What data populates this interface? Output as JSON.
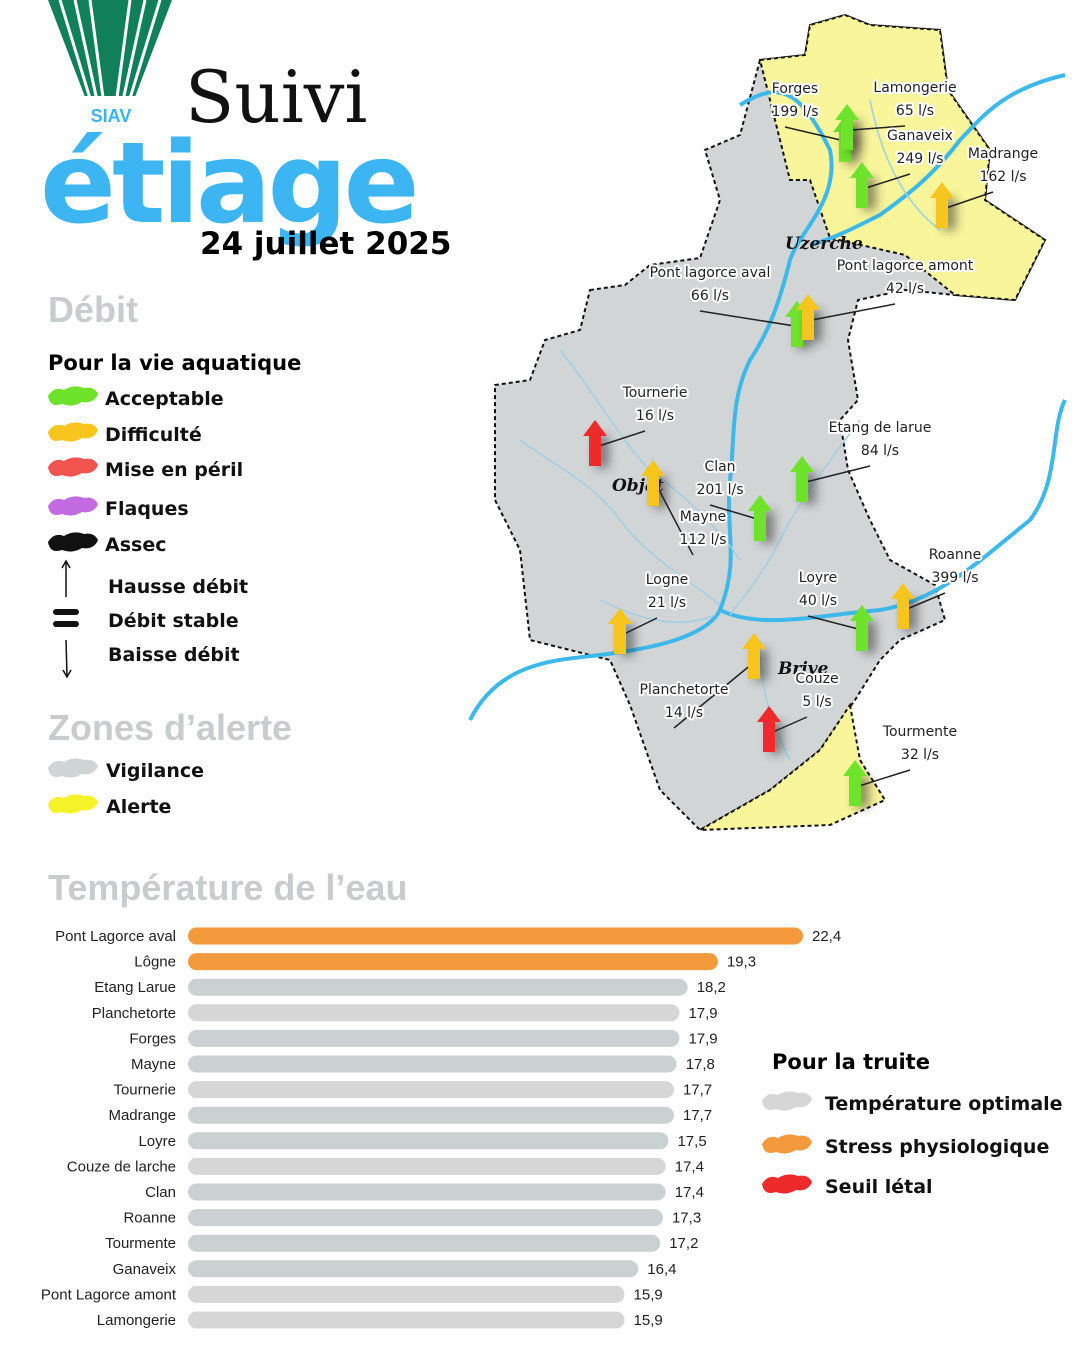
{
  "header": {
    "logo": "SIAV",
    "title_line1": "Suivi",
    "title_line2": "étiage",
    "date": "24 juillet 2025"
  },
  "flow_legend": {
    "heading": "Débit",
    "subheading": "Pour la vie aquatique",
    "items": [
      {
        "label": "Acceptable",
        "color": "#6fe22c"
      },
      {
        "label": "Difficulté",
        "color": "#f7c51d"
      },
      {
        "label": "Mise en péril",
        "color": "#f2544f"
      },
      {
        "label": "Flaques",
        "color": "#c26ae0"
      },
      {
        "label": "Assec",
        "color": "#111111"
      }
    ],
    "trends": [
      "Hausse débit",
      "Débit stable",
      "Baisse débit"
    ]
  },
  "zones_legend": {
    "heading": "Zones d’alerte",
    "items": [
      {
        "label": "Vigilance",
        "color": "#cfd5d6"
      },
      {
        "label": "Alerte",
        "color": "#f6f22a"
      }
    ]
  },
  "map": {
    "towns": [
      "Uzerche",
      "Objat",
      "Brive"
    ],
    "stations": [
      {
        "name": "Forges",
        "flow": "199 l/s",
        "color": "#6fe22c"
      },
      {
        "name": "Lamongerie",
        "flow": "65 l/s",
        "color": "#6fe22c"
      },
      {
        "name": "Ganaveix",
        "flow": "249 l/s",
        "color": "#6fe22c"
      },
      {
        "name": "Madrange",
        "flow": "162 l/s",
        "color": "#f7c51d"
      },
      {
        "name": "Pont lagorce aval",
        "flow": "66 l/s",
        "color": "#6fe22c"
      },
      {
        "name": "Pont lagorce amont",
        "flow": "42 l/s",
        "color": "#f7c51d"
      },
      {
        "name": "Tournerie",
        "flow": "16 l/s",
        "color": "#ee2a2a"
      },
      {
        "name": "Etang de larue",
        "flow": "84 l/s",
        "color": "#6fe22c"
      },
      {
        "name": "Clan",
        "flow": "201 l/s",
        "color": "#6fe22c"
      },
      {
        "name": "Mayne",
        "flow": "112 l/s",
        "color": "#f7c51d"
      },
      {
        "name": "Roanne",
        "flow": "399 l/s",
        "color": "#f7c51d"
      },
      {
        "name": "Loyre",
        "flow": "40 l/s",
        "color": "#6fe22c"
      },
      {
        "name": "Logne",
        "flow": "21 l/s",
        "color": "#f7c51d"
      },
      {
        "name": "Planchetorte",
        "flow": "14 l/s",
        "color": "#f7c51d"
      },
      {
        "name": "Couze",
        "flow": "5 l/s",
        "color": "#ee2a2a"
      },
      {
        "name": "Tourmente",
        "flow": "32 l/s",
        "color": "#6fe22c"
      }
    ]
  },
  "chart_data": {
    "type": "bar",
    "orientation": "horizontal",
    "title": "Température de l’eau",
    "categories": [
      "Pont Lagorce aval",
      "Lôgne",
      "Etang Larue",
      "Planchetorte",
      "Forges",
      "Mayne",
      "Tournerie",
      "Madrange",
      "Loyre",
      "Couze de larche",
      "Clan",
      "Roanne",
      "Tourmente",
      "Ganaveix",
      "Pont Lagorce amont",
      "Lamongerie"
    ],
    "values": [
      22.4,
      19.3,
      18.2,
      17.9,
      17.9,
      17.8,
      17.7,
      17.7,
      17.5,
      17.4,
      17.4,
      17.3,
      17.2,
      16.4,
      15.9,
      15.9
    ],
    "value_labels": [
      "22,4",
      "19,3",
      "18,2",
      "17,9",
      "17,9",
      "17,8",
      "17,7",
      "17,7",
      "17,5",
      "17,4",
      "17,4",
      "17,3",
      "17,2",
      "16,4",
      "15,9",
      "15,9"
    ],
    "colors": [
      "#f39a3d",
      "#f39a3d",
      "#c9d1d3",
      "#d6d6d6",
      "#c9d1d3",
      "#c9d1d3",
      "#d6d6d6",
      "#c9d1d3",
      "#c9d1d3",
      "#d6d6d6",
      "#c9d1d3",
      "#c9d1d3",
      "#c9d1d3",
      "#c9d1d3",
      "#d6d6d6",
      "#d6d6d6"
    ]
  },
  "trout_legend": {
    "heading": "Pour la truite",
    "items": [
      {
        "label": "Température optimale",
        "color": "#d6d6d6"
      },
      {
        "label": "Stress physiologique",
        "color": "#f39a3d"
      },
      {
        "label": "Seuil létal",
        "color": "#ee2a2a"
      }
    ]
  }
}
